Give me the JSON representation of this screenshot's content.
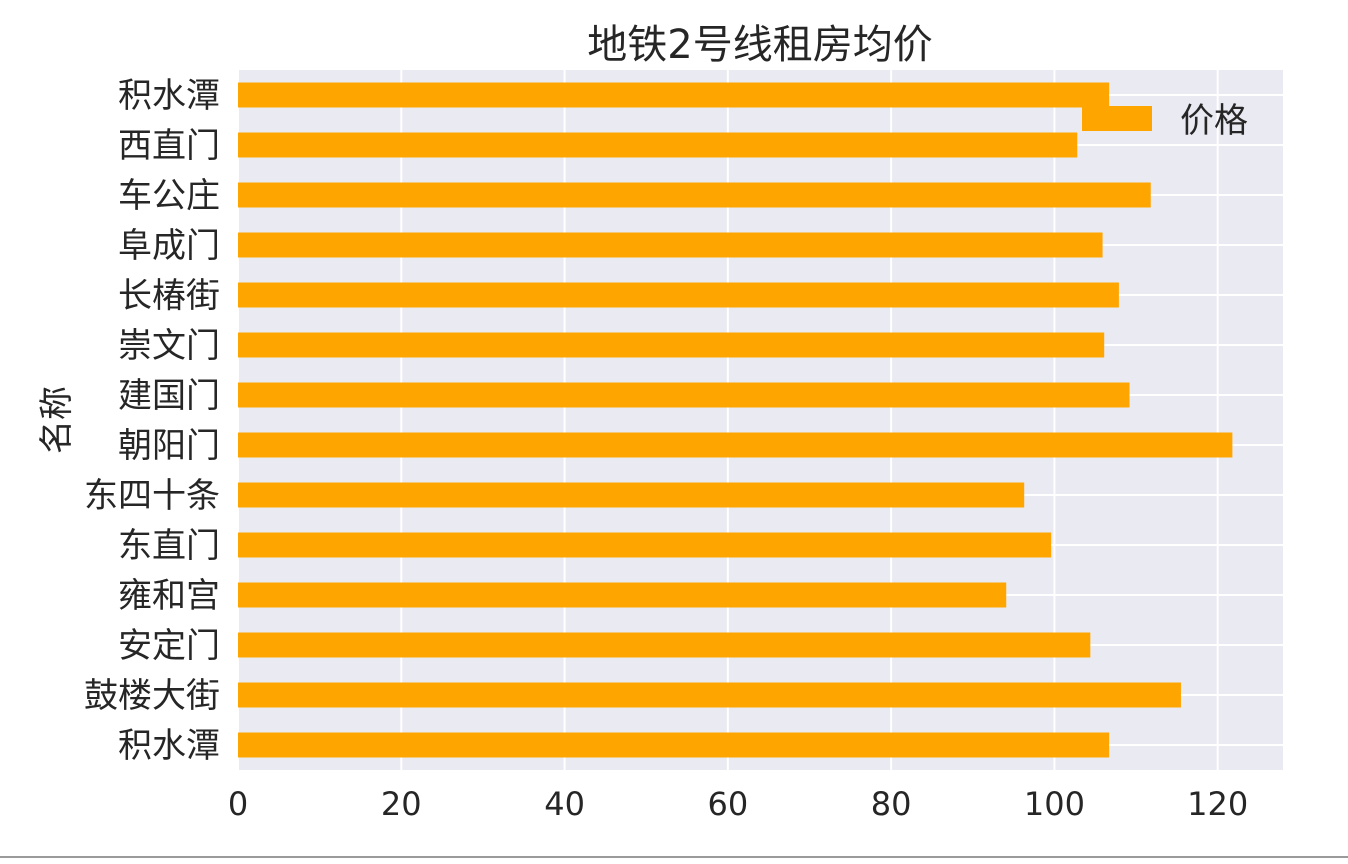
{
  "chart_data": {
    "type": "bar",
    "orientation": "horizontal",
    "title": "地铁2号线租房均价",
    "ylabel": "名称",
    "xlabel": "",
    "categories": [
      "积水潭",
      "西直门",
      "车公庄",
      "阜成门",
      "长椿街",
      "崇文门",
      "建国门",
      "朝阳门",
      "东四十条",
      "东直门",
      "雍和宫",
      "安定门",
      "鼓楼大街",
      "积水潭"
    ],
    "series": [
      {
        "name": "价格",
        "values": [
          106.7,
          102.8,
          111.8,
          105.9,
          107.9,
          106.1,
          109.2,
          121.8,
          96.3,
          99.6,
          94.1,
          104.4,
          115.5,
          106.7
        ]
      }
    ],
    "xlim": [
      0,
      128
    ],
    "xticks": [
      "0",
      "20",
      "40",
      "60",
      "80",
      "100",
      "120"
    ],
    "legend": {
      "position": "top-right",
      "label": "价格"
    },
    "grid": true,
    "colors": {
      "bar": "#FFA500",
      "plot_bg": "#EAEAF2",
      "grid": "#FFFFFF",
      "text": "#262626"
    }
  }
}
